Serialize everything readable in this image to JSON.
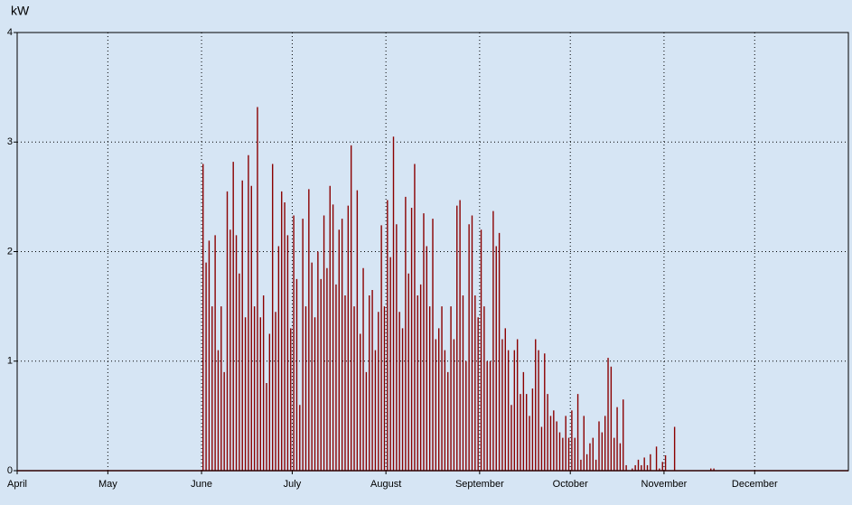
{
  "chart_data": {
    "type": "spike",
    "ylabel": "kW",
    "color": "#8b0000",
    "grid": true,
    "ylim": [
      0,
      4
    ],
    "yticks": [
      0,
      1,
      2,
      3,
      4
    ],
    "categories": [
      "April",
      null,
      null,
      null,
      null,
      null,
      null,
      null,
      null,
      null,
      null,
      null,
      null,
      null,
      null,
      null,
      null,
      null,
      null,
      null,
      null,
      null,
      null,
      null,
      null,
      null,
      null,
      null,
      null,
      null,
      "May",
      null,
      null,
      null,
      null,
      null,
      null,
      null,
      null,
      null,
      null,
      null,
      null,
      null,
      null,
      null,
      null,
      null,
      null,
      null,
      null,
      null,
      null,
      null,
      null,
      null,
      null,
      null,
      null,
      null,
      null,
      "June",
      null,
      null,
      null,
      null,
      null,
      null,
      null,
      null,
      null,
      null,
      null,
      null,
      null,
      null,
      null,
      null,
      null,
      null,
      null,
      null,
      null,
      null,
      null,
      null,
      null,
      null,
      null,
      null,
      null,
      "July",
      null,
      null,
      null,
      null,
      null,
      null,
      null,
      null,
      null,
      null,
      null,
      null,
      null,
      null,
      null,
      null,
      null,
      null,
      null,
      null,
      null,
      null,
      null,
      null,
      null,
      null,
      null,
      null,
      null,
      null,
      "August",
      null,
      null,
      null,
      null,
      null,
      null,
      null,
      null,
      null,
      null,
      null,
      null,
      null,
      null,
      null,
      null,
      null,
      null,
      null,
      null,
      null,
      null,
      null,
      null,
      null,
      null,
      null,
      null,
      null,
      null,
      "September",
      null,
      null,
      null,
      null,
      null,
      null,
      null,
      null,
      null,
      null,
      null,
      null,
      null,
      null,
      null,
      null,
      null,
      null,
      null,
      null,
      null,
      null,
      null,
      null,
      null,
      null,
      null,
      null,
      null,
      "October",
      null,
      null,
      null,
      null,
      null,
      null,
      null,
      null,
      null,
      null,
      null,
      null,
      null,
      null,
      null,
      null,
      null,
      null,
      null,
      null,
      null,
      null,
      null,
      null,
      null,
      null,
      null,
      null,
      null,
      null,
      "November",
      null,
      null,
      null,
      null,
      null,
      null,
      null,
      null,
      null,
      null,
      null,
      null,
      null,
      null,
      null,
      null,
      null,
      null,
      null,
      null,
      null,
      null,
      null,
      null,
      null,
      null,
      null,
      null,
      null,
      "December",
      null,
      null,
      null,
      null,
      null,
      null,
      null,
      null,
      null,
      null,
      null,
      null,
      null,
      null,
      null,
      null,
      null,
      null,
      null,
      null,
      null,
      null,
      null,
      null,
      null,
      null,
      null,
      null,
      null,
      null
    ],
    "values": [
      0,
      0,
      0,
      0,
      0,
      0,
      0,
      0,
      0,
      0,
      0,
      0,
      0,
      0,
      0,
      0,
      0,
      0,
      0,
      0,
      0,
      0,
      0,
      0,
      0,
      0,
      0,
      0,
      0,
      0,
      0,
      0,
      0,
      0,
      0,
      0,
      0,
      0,
      0,
      0,
      0,
      0,
      0,
      0,
      0,
      0,
      0,
      0,
      0,
      0,
      0,
      0,
      0,
      0,
      0,
      0,
      0,
      0,
      0,
      0,
      0,
      2.8,
      1.9,
      2.1,
      1.5,
      2.15,
      1.1,
      1.5,
      0.9,
      2.55,
      2.2,
      2.82,
      2.15,
      1.8,
      2.65,
      1.4,
      2.88,
      2.6,
      1.5,
      3.32,
      1.4,
      1.6,
      0.8,
      1.25,
      2.8,
      1.45,
      2.05,
      2.55,
      2.45,
      2.15,
      1.3,
      2.33,
      1.75,
      0.6,
      2.3,
      1.5,
      2.57,
      1.9,
      1.4,
      2.0,
      1.75,
      2.33,
      1.85,
      2.6,
      2.43,
      1.7,
      2.2,
      2.3,
      1.6,
      2.42,
      2.97,
      1.5,
      2.56,
      1.25,
      1.85,
      0.9,
      1.6,
      1.65,
      1.1,
      1.45,
      2.24,
      1.5,
      2.47,
      1.95,
      3.05,
      2.25,
      1.45,
      1.3,
      2.5,
      1.8,
      2.4,
      2.8,
      1.6,
      1.7,
      2.35,
      2.05,
      1.5,
      2.3,
      1.2,
      1.3,
      1.5,
      1.1,
      0.9,
      1.5,
      1.2,
      2.42,
      2.47,
      1.6,
      1.0,
      2.25,
      2.33,
      1.6,
      1.4,
      2.2,
      1.5,
      1.0,
      1.0,
      2.37,
      2.05,
      2.17,
      1.2,
      1.3,
      1.1,
      0.6,
      1.1,
      1.2,
      0.7,
      0.9,
      0.7,
      0.5,
      0.75,
      1.2,
      1.1,
      0.4,
      1.07,
      0.7,
      0.5,
      0.55,
      0.45,
      0.35,
      0.3,
      0.5,
      0.3,
      0.55,
      0.3,
      0.7,
      0.1,
      0.5,
      0.15,
      0.25,
      0.3,
      0.1,
      0.45,
      0.35,
      0.5,
      1.03,
      0.95,
      0.3,
      0.58,
      0.25,
      0.65,
      0.05,
      0,
      0.02,
      0.05,
      0.1,
      0.05,
      0.12,
      0.05,
      0.15,
      0,
      0.22,
      0.02,
      0.08,
      0.14,
      0,
      0,
      0.4,
      0,
      0,
      0,
      0,
      0,
      0,
      0,
      0,
      0,
      0,
      0,
      0.02,
      0.02,
      0,
      0,
      0,
      0,
      0,
      0,
      0,
      0,
      0,
      0,
      0,
      0,
      0,
      0,
      0,
      0,
      0,
      0,
      0,
      0,
      0,
      0,
      0,
      0,
      0,
      0,
      0,
      0,
      0,
      0,
      0,
      0,
      0,
      0,
      0,
      0,
      0,
      0,
      0,
      0,
      0,
      0,
      0,
      0
    ]
  }
}
